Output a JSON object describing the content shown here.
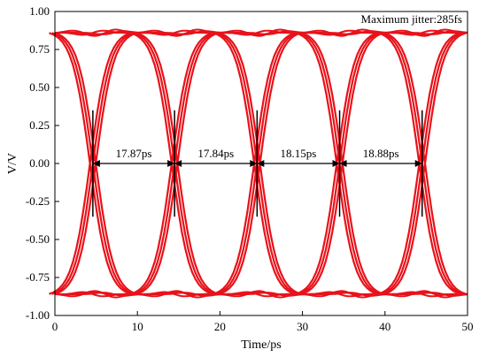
{
  "chart_data": {
    "type": "line",
    "title": "",
    "xlabel": "Time/ps",
    "ylabel": "V/V",
    "xlim": [
      0,
      50
    ],
    "ylim": [
      -1.0,
      1.0
    ],
    "x_ticks": [
      0,
      10,
      20,
      30,
      40,
      50
    ],
    "x_tick_labels": [
      "0",
      "10",
      "20",
      "30",
      "40",
      "50"
    ],
    "y_ticks": [
      -1.0,
      -0.75,
      -0.5,
      -0.25,
      0.0,
      0.25,
      0.5,
      0.75,
      1.0
    ],
    "y_tick_labels": [
      "-1.00",
      "-0.75",
      "-0.50",
      "-0.25",
      "0.00",
      "0.25",
      "0.50",
      "0.75",
      "1.00"
    ],
    "grid": false,
    "series_color": "#e8121a",
    "eye_rail_levels": [
      0.86,
      -0.86
    ],
    "crossings": [
      4.6,
      14.5,
      24.5,
      34.5,
      44.5
    ],
    "jitter_markers": [
      {
        "x": 4.6,
        "y_min": -0.35,
        "y_max": 0.35
      },
      {
        "x": 14.5,
        "y_min": -0.35,
        "y_max": 0.35
      },
      {
        "x": 24.5,
        "y_min": -0.35,
        "y_max": 0.35
      },
      {
        "x": 34.5,
        "y_min": -0.35,
        "y_max": 0.35
      },
      {
        "x": 44.5,
        "y_min": -0.35,
        "y_max": 0.35
      }
    ],
    "annotations": [
      {
        "x0": 4.6,
        "x1": 14.5,
        "y": 0.0,
        "label": "17.87ps"
      },
      {
        "x0": 14.5,
        "x1": 24.5,
        "y": 0.0,
        "label": "17.84ps"
      },
      {
        "x0": 24.5,
        "x1": 34.5,
        "y": 0.0,
        "label": "18.15ps"
      },
      {
        "x0": 34.5,
        "x1": 44.5,
        "y": 0.0,
        "label": "18.88ps"
      }
    ],
    "legend_text": "Maximum jitter:285fs",
    "legend_position": "top-right"
  }
}
